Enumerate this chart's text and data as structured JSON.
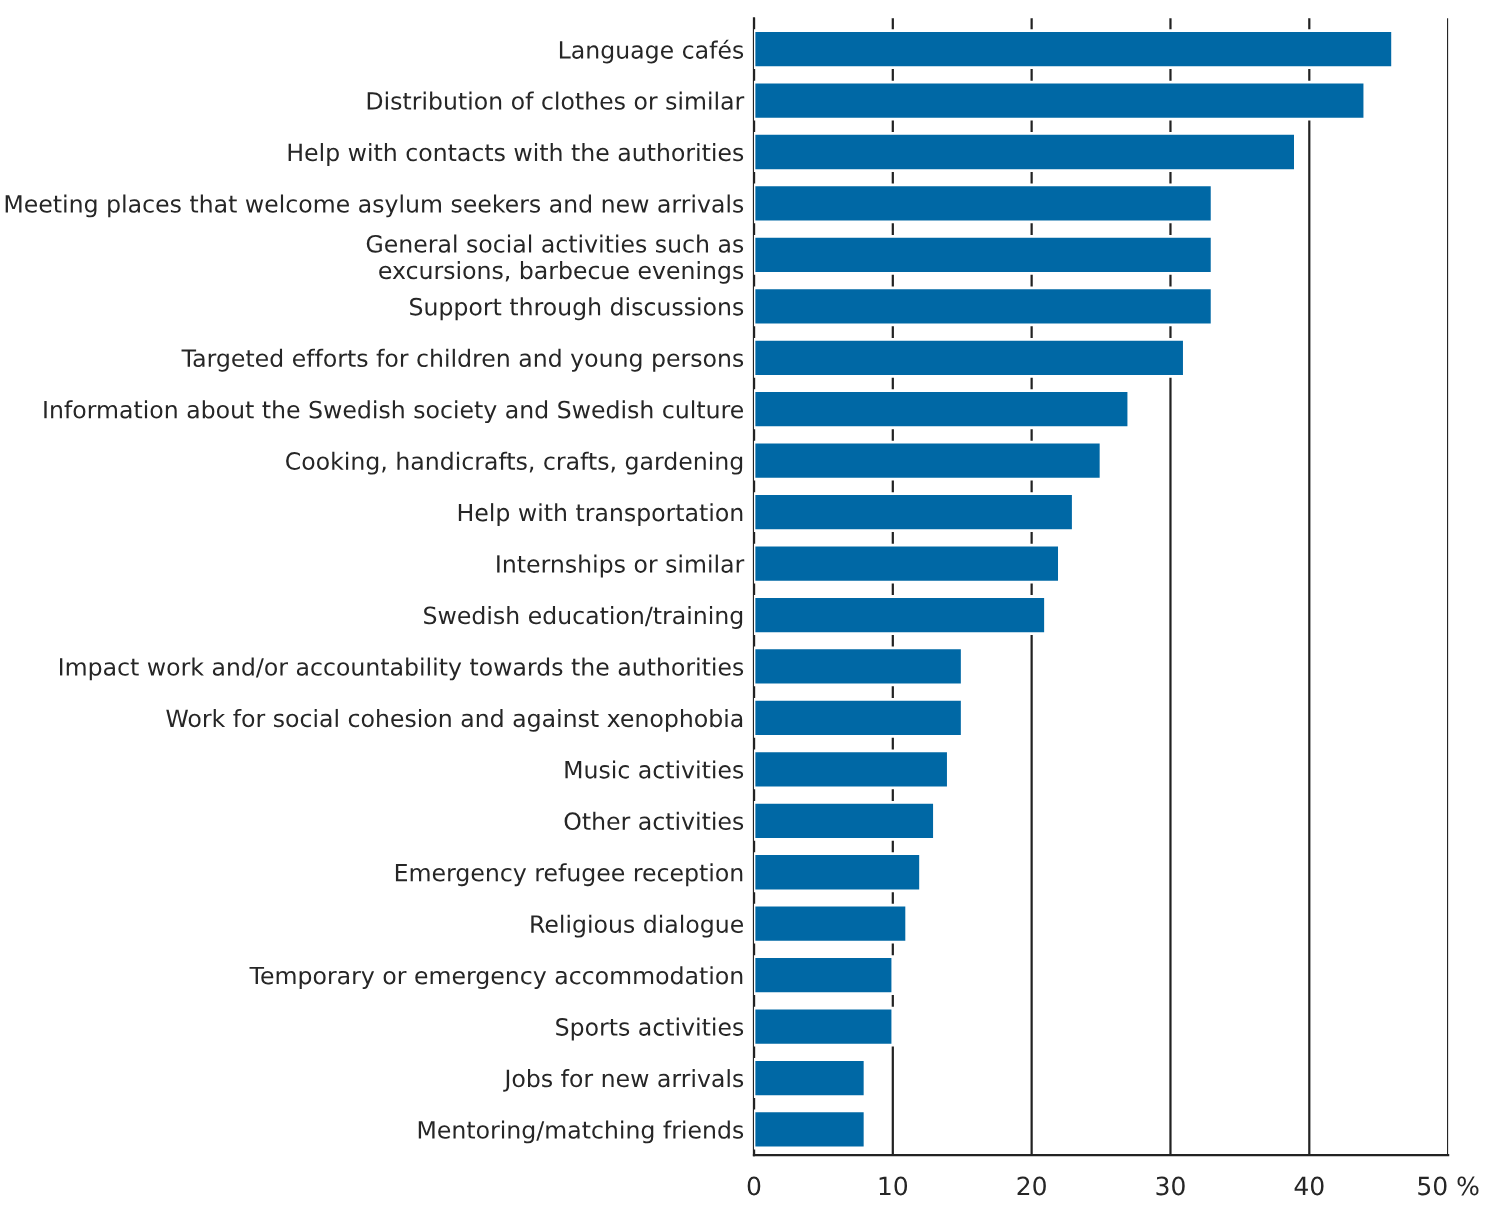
{
  "chart_data": {
    "type": "bar",
    "orientation": "horizontal",
    "categories": [
      "Language cafés",
      "Distribution of clothes or similar",
      "Help with contacts with the authorities",
      "Meeting places that welcome asylum seekers and new arrivals",
      "General social activities such as\nexcursions, barbecue evenings",
      "Support through discussions",
      "Targeted efforts for children and young persons",
      "Information about the Swedish society and Swedish culture",
      "Cooking, handicrafts, crafts, gardening",
      "Help with transportation",
      "Internships or similar",
      "Swedish education/training",
      "Impact work and/or accountability towards the authorities",
      "Work for social cohesion and against xenophobia",
      "Music activities",
      "Other activities",
      "Emergency refugee reception",
      "Religious dialogue",
      "Temporary or emergency accommodation",
      "Sports activities",
      "Jobs for new arrivals",
      "Mentoring/matching friends"
    ],
    "values": [
      46,
      44,
      39,
      33,
      33,
      33,
      31,
      27,
      25,
      23,
      22,
      21,
      15,
      15,
      14,
      13,
      12,
      11,
      10,
      10,
      8,
      8
    ],
    "color": "#0068a5",
    "xlim": [
      0,
      50
    ],
    "xticks": [
      0,
      10,
      20,
      30,
      40,
      {
        "value": 50,
        "label": "50 %"
      }
    ],
    "grid": "x"
  }
}
